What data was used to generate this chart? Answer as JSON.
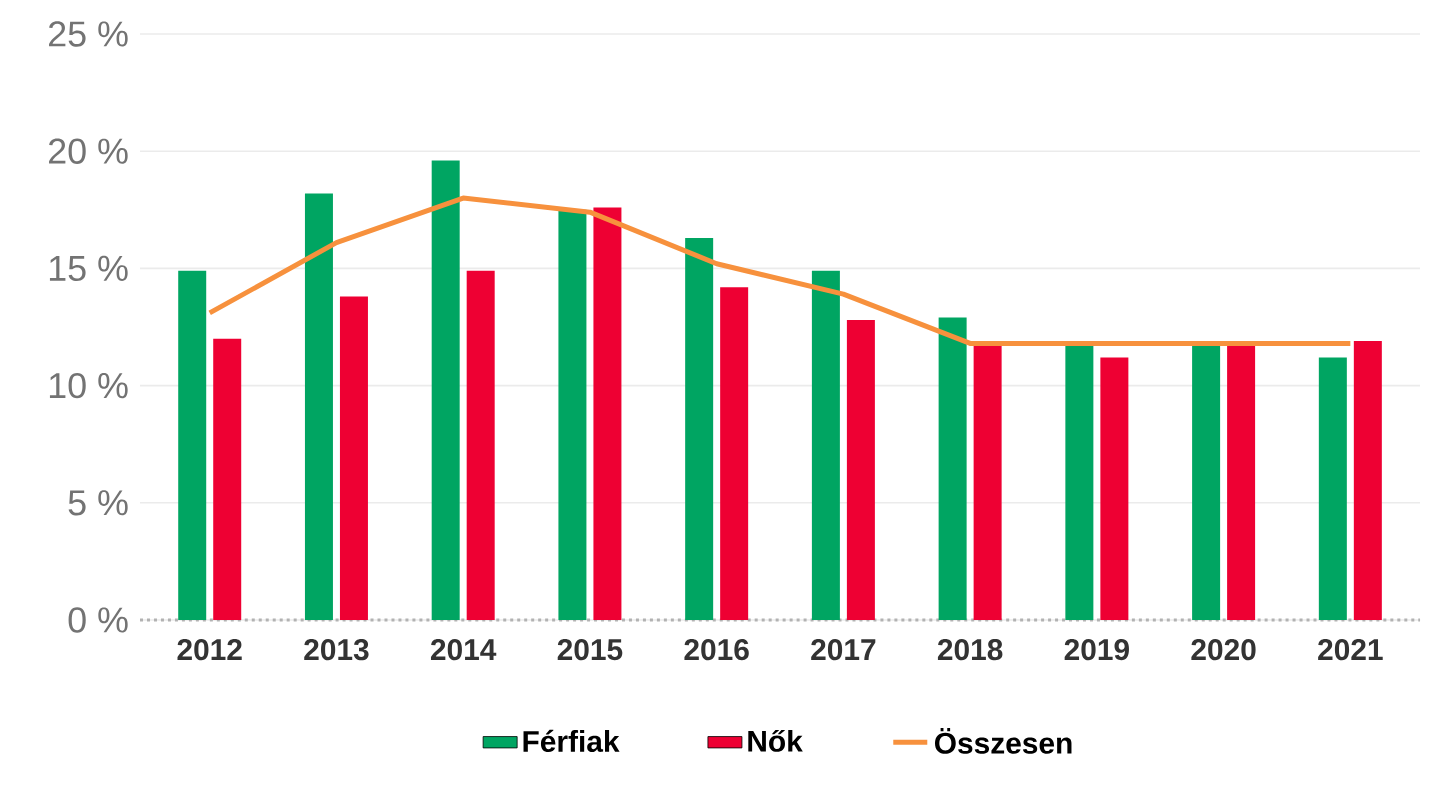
{
  "chart_data": {
    "type": "bar",
    "categories": [
      "2012",
      "2013",
      "2014",
      "2015",
      "2016",
      "2017",
      "2018",
      "2019",
      "2020",
      "2021"
    ],
    "series": [
      {
        "name": "Férfiak",
        "color": "#00a562",
        "values": [
          14.9,
          18.2,
          19.6,
          17.5,
          16.3,
          14.9,
          12.9,
          11.8,
          11.8,
          11.2
        ]
      },
      {
        "name": "Nők",
        "color": "#ee0033",
        "values": [
          12.0,
          13.8,
          14.9,
          17.6,
          14.2,
          12.8,
          11.8,
          11.2,
          11.8,
          11.9
        ]
      },
      {
        "name": "Összesen",
        "type": "line",
        "color": "#f7913d",
        "values": [
          13.1,
          16.1,
          18.0,
          17.4,
          15.2,
          13.9,
          11.8,
          11.8,
          11.8,
          11.8
        ]
      }
    ],
    "ylim": [
      0,
      25
    ],
    "yticks": [
      {
        "value": 0,
        "label": "0 %"
      },
      {
        "value": 5,
        "label": "5 %"
      },
      {
        "value": 10,
        "label": "10 %"
      },
      {
        "value": 15,
        "label": "15 %"
      },
      {
        "value": 20,
        "label": "20 %"
      },
      {
        "value": 25,
        "label": "25 %"
      }
    ],
    "grid": "y",
    "legend": "bottom",
    "marker": "none"
  }
}
